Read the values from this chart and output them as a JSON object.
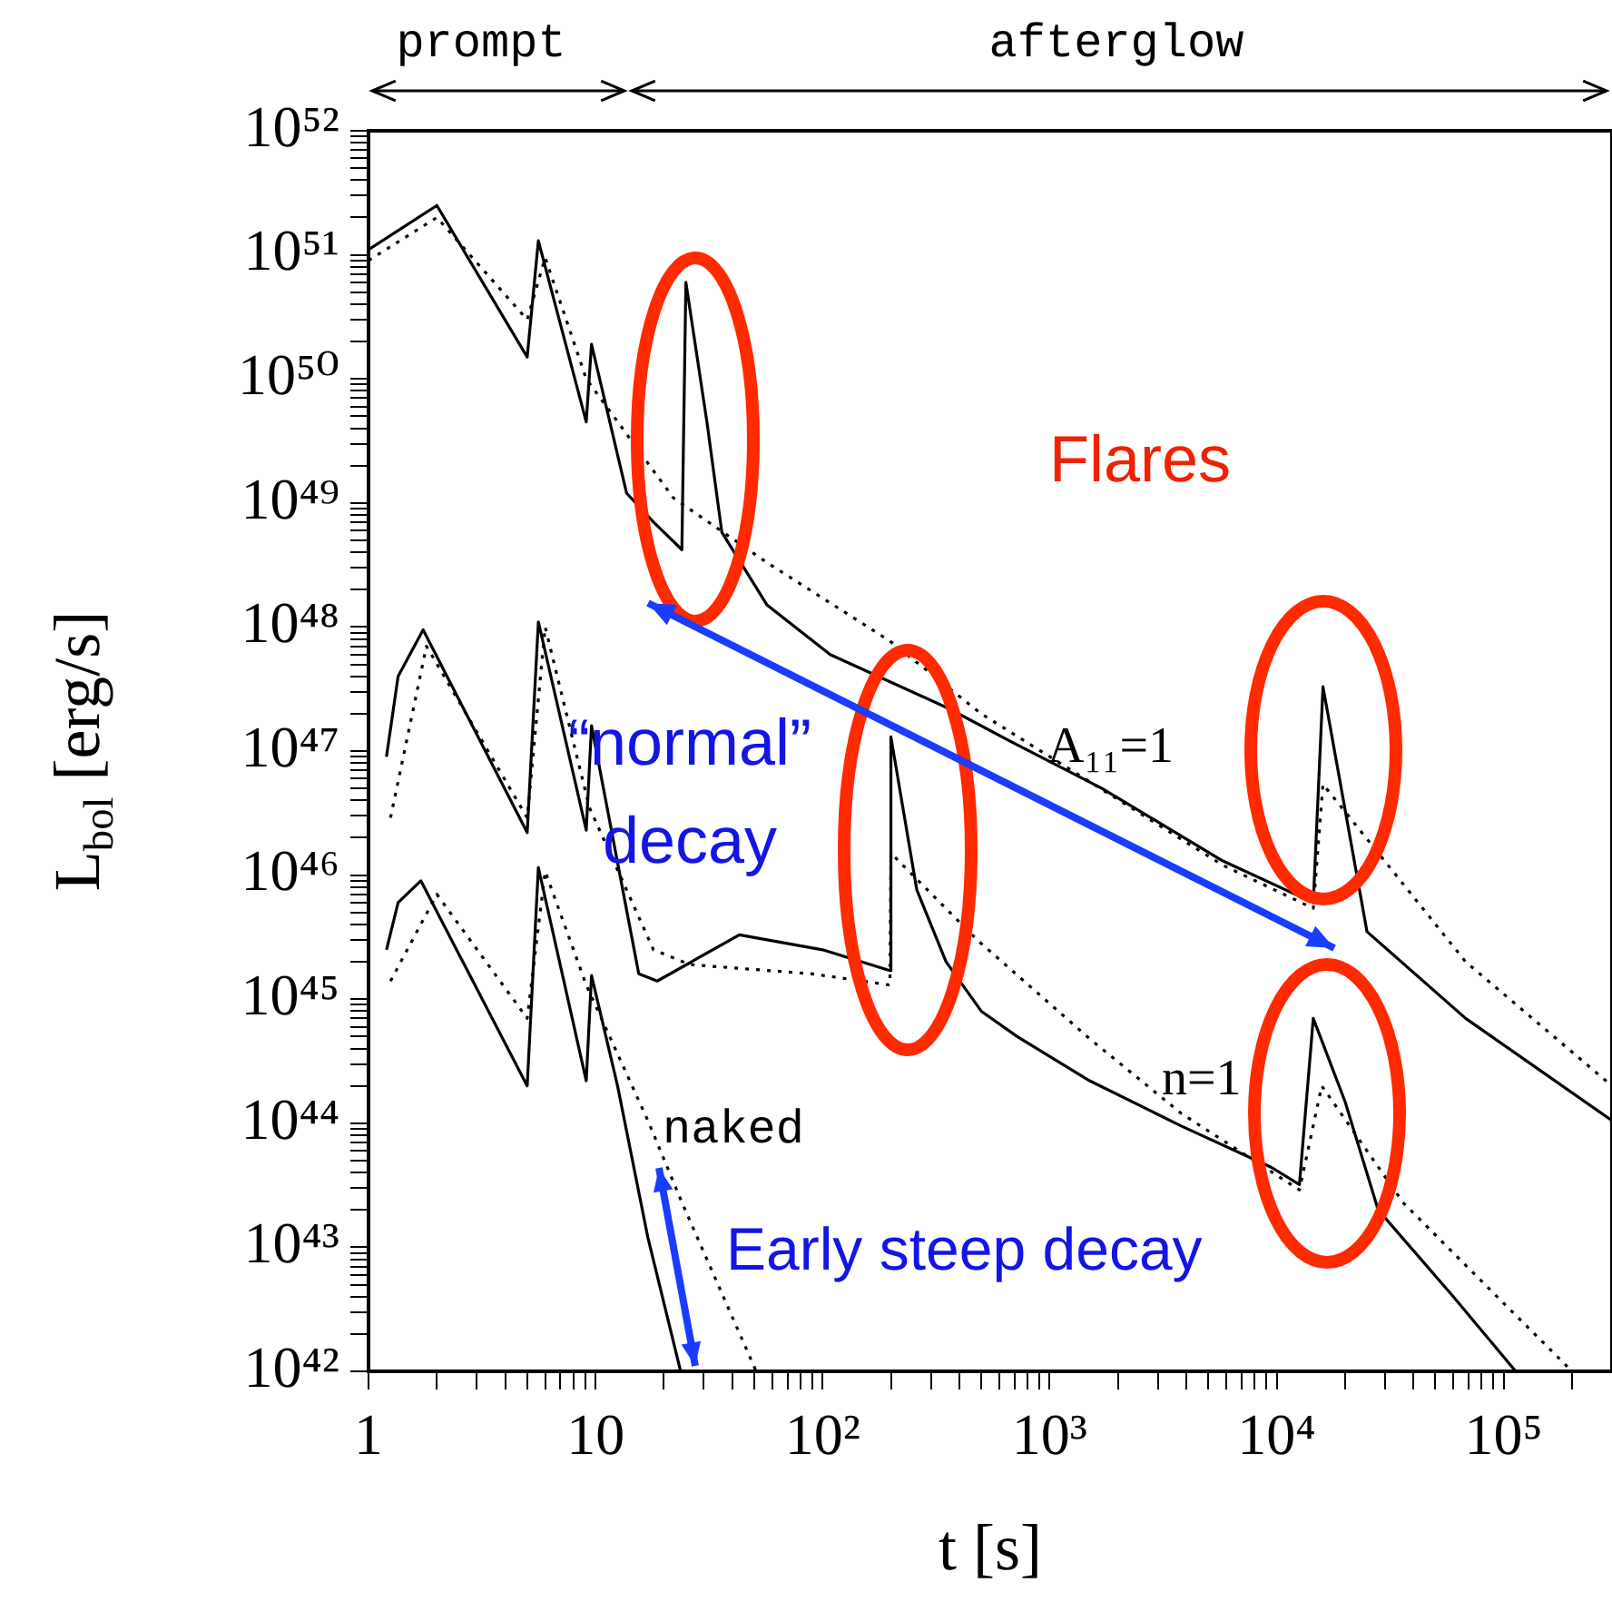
{
  "chart_data": {
    "type": "line",
    "xlabel": "t [s]",
    "ylabel": "L$_{bol}$ [erg/s]",
    "log": "xy",
    "grid": false,
    "legend": false,
    "xlim": [
      1,
      300000
    ],
    "ylim": [
      1e+42,
      1e+52
    ],
    "xticks": [
      1,
      {
        "value": 2,
        "label": null
      },
      {
        "value": 3,
        "label": null
      },
      {
        "value": 4,
        "label": null
      },
      {
        "value": 5,
        "label": null
      },
      {
        "value": 6,
        "label": null
      },
      {
        "value": 7,
        "label": null
      },
      {
        "value": 8,
        "label": null
      },
      {
        "value": 9,
        "label": null
      },
      10,
      {
        "value": 20,
        "label": null
      },
      {
        "value": 30,
        "label": null
      },
      {
        "value": 40,
        "label": null
      },
      {
        "value": 50,
        "label": null
      },
      {
        "value": 60,
        "label": null
      },
      {
        "value": 70,
        "label": null
      },
      {
        "value": 80,
        "label": null
      },
      {
        "value": 90,
        "label": null
      },
      {
        "value": 100,
        "label": "10²"
      },
      {
        "value": 200,
        "label": null
      },
      {
        "value": 300,
        "label": null
      },
      {
        "value": 400,
        "label": null
      },
      {
        "value": 500,
        "label": null
      },
      {
        "value": 600,
        "label": null
      },
      {
        "value": 700,
        "label": null
      },
      {
        "value": 800,
        "label": null
      },
      {
        "value": 900,
        "label": null
      },
      {
        "value": 1000,
        "label": "10³"
      },
      {
        "value": 2000,
        "label": null
      },
      {
        "value": 3000,
        "label": null
      },
      {
        "value": 4000,
        "label": null
      },
      {
        "value": 5000,
        "label": null
      },
      {
        "value": 6000,
        "label": null
      },
      {
        "value": 7000,
        "label": null
      },
      {
        "value": 8000,
        "label": null
      },
      {
        "value": 9000,
        "label": null
      },
      {
        "value": 10000,
        "label": "10⁴"
      },
      {
        "value": 20000,
        "label": null
      },
      {
        "value": 30000,
        "label": null
      },
      {
        "value": 40000,
        "label": null
      },
      {
        "value": 50000,
        "label": null
      },
      {
        "value": 60000,
        "label": null
      },
      {
        "value": 70000,
        "label": null
      },
      {
        "value": 80000,
        "label": null
      },
      {
        "value": 90000,
        "label": null
      },
      {
        "value": 100000,
        "label": "10⁵"
      },
      {
        "value": 200000,
        "label": null
      }
    ],
    "yticks": [
      {
        "value": 1e+42,
        "label": "10⁴²"
      },
      {
        "value": 2e+42,
        "label": null
      },
      {
        "value": 3e+42,
        "label": null
      },
      {
        "value": 4e+42,
        "label": null
      },
      {
        "value": 5e+42,
        "label": null
      },
      {
        "value": 6e+42,
        "label": null
      },
      {
        "value": 7e+42,
        "label": null
      },
      {
        "value": 8e+42,
        "label": null
      },
      {
        "value": 9e+42,
        "label": null
      },
      {
        "value": 1e+43,
        "label": "10⁴³"
      },
      {
        "value": 2e+43,
        "label": null
      },
      {
        "value": 3e+43,
        "label": null
      },
      {
        "value": 4e+43,
        "label": null
      },
      {
        "value": 5e+43,
        "label": null
      },
      {
        "value": 6e+43,
        "label": null
      },
      {
        "value": 7e+43,
        "label": null
      },
      {
        "value": 8e+43,
        "label": null
      },
      {
        "value": 9e+43,
        "label": null
      },
      {
        "value": 1e+44,
        "label": "10⁴⁴"
      },
      {
        "value": 2e+44,
        "label": null
      },
      {
        "value": 3e+44,
        "label": null
      },
      {
        "value": 4e+44,
        "label": null
      },
      {
        "value": 5e+44,
        "label": null
      },
      {
        "value": 6e+44,
        "label": null
      },
      {
        "value": 7e+44,
        "label": null
      },
      {
        "value": 8e+44,
        "label": null
      },
      {
        "value": 9e+44,
        "label": null
      },
      {
        "value": 1e+45,
        "label": "10⁴⁵"
      },
      {
        "value": 2e+45,
        "label": null
      },
      {
        "value": 3e+45,
        "label": null
      },
      {
        "value": 4e+45,
        "label": null
      },
      {
        "value": 5e+45,
        "label": null
      },
      {
        "value": 6e+45,
        "label": null
      },
      {
        "value": 7e+45,
        "label": null
      },
      {
        "value": 8e+45,
        "label": null
      },
      {
        "value": 9e+45,
        "label": null
      },
      {
        "value": 1e+46,
        "label": "10⁴⁶"
      },
      {
        "value": 2e+46,
        "label": null
      },
      {
        "value": 3e+46,
        "label": null
      },
      {
        "value": 4e+46,
        "label": null
      },
      {
        "value": 5e+46,
        "label": null
      },
      {
        "value": 6e+46,
        "label": null
      },
      {
        "value": 7e+46,
        "label": null
      },
      {
        "value": 8e+46,
        "label": null
      },
      {
        "value": 9e+46,
        "label": null
      },
      {
        "value": 1e+47,
        "label": "10⁴⁷"
      },
      {
        "value": 2e+47,
        "label": null
      },
      {
        "value": 3e+47,
        "label": null
      },
      {
        "value": 4e+47,
        "label": null
      },
      {
        "value": 5e+47,
        "label": null
      },
      {
        "value": 6e+47,
        "label": null
      },
      {
        "value": 7e+47,
        "label": null
      },
      {
        "value": 8e+47,
        "label": null
      },
      {
        "value": 9e+47,
        "label": null
      },
      {
        "value": 1e+48,
        "label": "10⁴⁸"
      },
      {
        "value": 2e+48,
        "label": null
      },
      {
        "value": 3e+48,
        "label": null
      },
      {
        "value": 4e+48,
        "label": null
      },
      {
        "value": 5e+48,
        "label": null
      },
      {
        "value": 6e+48,
        "label": null
      },
      {
        "value": 7e+48,
        "label": null
      },
      {
        "value": 8e+48,
        "label": null
      },
      {
        "value": 9e+48,
        "label": null
      },
      {
        "value": 1e+49,
        "label": "10⁴⁹"
      },
      {
        "value": 2e+49,
        "label": null
      },
      {
        "value": 3e+49,
        "label": null
      },
      {
        "value": 4e+49,
        "label": null
      },
      {
        "value": 5e+49,
        "label": null
      },
      {
        "value": 6e+49,
        "label": null
      },
      {
        "value": 7e+49,
        "label": null
      },
      {
        "value": 8e+49,
        "label": null
      },
      {
        "value": 9e+49,
        "label": null
      },
      {
        "value": 1e+50,
        "label": "10⁵⁰"
      },
      {
        "value": 2e+50,
        "label": null
      },
      {
        "value": 3e+50,
        "label": null
      },
      {
        "value": 4e+50,
        "label": null
      },
      {
        "value": 5e+50,
        "label": null
      },
      {
        "value": 6e+50,
        "label": null
      },
      {
        "value": 7e+50,
        "label": null
      },
      {
        "value": 8e+50,
        "label": null
      },
      {
        "value": 9e+50,
        "label": null
      },
      {
        "value": 1e+51,
        "label": "10⁵¹"
      },
      {
        "value": 2e+51,
        "label": null
      },
      {
        "value": 3e+51,
        "label": null
      },
      {
        "value": 4e+51,
        "label": null
      },
      {
        "value": 5e+51,
        "label": null
      },
      {
        "value": 6e+51,
        "label": null
      },
      {
        "value": 7e+51,
        "label": null
      },
      {
        "value": 8e+51,
        "label": null
      },
      {
        "value": 9e+51,
        "label": null
      },
      {
        "value": 1e+52,
        "label": "10⁵²"
      }
    ],
    "series": [
      {
        "color": "#000000",
        "line_style": "solid",
        "x": [
          1,
          2,
          5,
          5.6,
          9.1,
          9.6,
          13.7,
          18,
          24,
          25,
          31,
          36,
          57,
          108,
          360,
          670,
          1700,
          5800,
          14500,
          16000,
          25000,
          68000,
          300000
        ],
        "values": [
          1.1e+51,
          2.5e+51,
          1.5e+50,
          1.3e+51,
          4.5e+49,
          1.9e+50,
          1.2e+49,
          7e+48,
          4.2e+48,
          6e+50,
          4.4e+49,
          5.8e+48,
          1.5e+48,
          6e+47,
          2.2e+47,
          1.2e+47,
          5e+46,
          1.3e+46,
          6e+45,
          3.3e+47,
          3.5e+45,
          7e+44,
          1.05e+44
        ]
      },
      {
        "color": "#000000",
        "line_style": "dotted",
        "x": [
          1,
          2,
          5,
          6,
          9.1,
          22,
          57,
          198,
          500,
          1700,
          5800,
          14500,
          16000,
          68000,
          300000
        ],
        "values": [
          9e+50,
          2e+51,
          3e+50,
          9.5e+50,
          1e+50,
          1.1e+49,
          3.3e+48,
          7.7e+47,
          2e+47,
          4.9e+46,
          1.2e+46,
          5.4e+45,
          5.4e+46,
          2e+45,
          2e+44
        ]
      },
      {
        "color": "#000000",
        "line_style": "solid",
        "x": [
          1.2,
          1.35,
          1.74,
          5,
          5.6,
          9.1,
          9.6,
          15.5,
          18.7,
          43,
          100,
          198,
          200,
          260,
          350,
          500,
          720,
          1500,
          3800,
          9500,
          12600,
          14500,
          20000,
          28000,
          60000,
          113000
        ],
        "values": [
          9e+46,
          4e+47,
          9.5e+47,
          2.2e+46,
          1.1e+48,
          2.3e+46,
          1.6e+47,
          1.6e+45,
          1.4e+45,
          3.3e+45,
          2.5e+45,
          1.7e+45,
          1.3e+47,
          7.6e+45,
          2e+45,
          8e+44,
          5e+44,
          2.2e+44,
          9.5e+43,
          4.4e+43,
          3.2e+43,
          7e+44,
          1.5e+44,
          2e+43,
          4e+42,
          1e+42
        ]
      },
      {
        "color": "#000000",
        "line_style": "dotted",
        "x": [
          1.25,
          1.8,
          5,
          6,
          9.4,
          13.7,
          18,
          26,
          90,
          198,
          200,
          480,
          1500,
          3800,
          12600,
          15800,
          36000,
          60000,
          200000
        ],
        "values": [
          2.9e+46,
          7e+47,
          2.9e+46,
          1e+48,
          3.5e+46,
          7.6e+45,
          2.5e+45,
          1.9e+45,
          1.6e+45,
          1.3e+45,
          1.5e+46,
          3e+45,
          4.8e+44,
          1.2e+44,
          2.9e+43,
          2e+44,
          2.3e+43,
          9e+42,
          1e+42
        ]
      },
      {
        "color": "#000000",
        "line_style": "solid",
        "x": [
          1.2,
          1.35,
          1.7,
          5,
          5.6,
          9.1,
          9.6,
          12.5,
          17,
          23.7
        ],
        "values": [
          2.5e+45,
          6e+45,
          9e+45,
          2e+44,
          1.15e+46,
          2.2e+44,
          1.55e+45,
          2e+44,
          1.2e+43,
          1e+42
        ]
      },
      {
        "color": "#000000",
        "line_style": "dotted",
        "x": [
          1.25,
          2,
          5,
          6,
          9.1,
          17,
          24,
          51
        ],
        "values": [
          1.4e+45,
          7e+45,
          7e+44,
          1.07e+46,
          1.3e+45,
          1.05e+44,
          2.3e+43,
          1e+42
        ]
      }
    ],
    "annotations": [
      "prompt",
      "afterglow",
      "Flares",
      "“normal” decay",
      "Early steep decay",
      "A₁₁=1",
      "n=1",
      "naked"
    ]
  }
}
